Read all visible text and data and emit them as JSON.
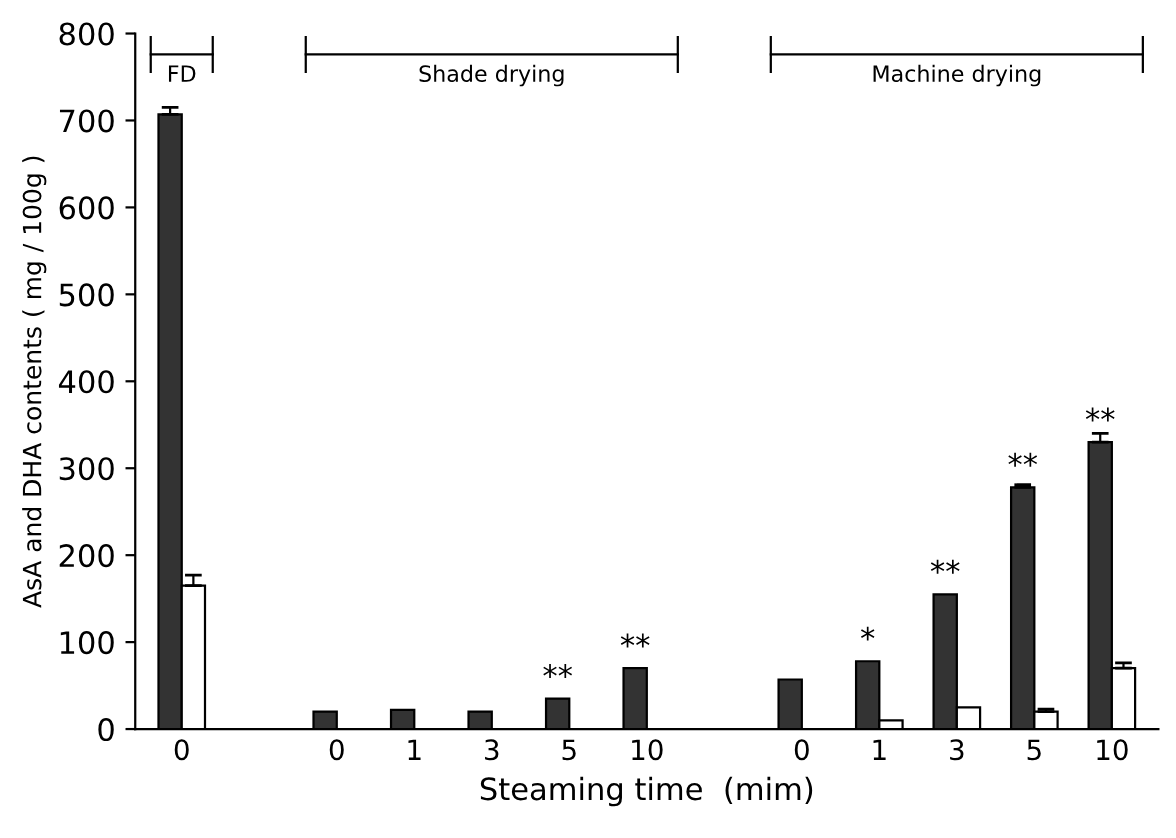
{
  "chart_data": {
    "type": "bar",
    "xlabel": "Steaming time  (mim)",
    "ylabel": "AsA and DHA contents ( mg / 100g )",
    "categories": [
      "0",
      null,
      "0",
      "1",
      "3",
      "5",
      "10",
      null,
      "0",
      "1",
      "3",
      "5",
      "10"
    ],
    "series": [
      {
        "color": "#333333",
        "values": [
          707,
          null,
          20,
          22,
          20,
          35,
          70,
          null,
          57,
          78,
          155,
          278,
          330
        ],
        "errors": [
          8,
          null,
          null,
          null,
          null,
          null,
          null,
          null,
          null,
          null,
          null,
          3,
          10
        ],
        "value_labels": [
          null,
          null,
          null,
          null,
          null,
          "**",
          "**",
          null,
          null,
          "*",
          "**",
          "**",
          "**"
        ]
      },
      {
        "color": "#ffffff",
        "values": [
          165,
          null,
          0,
          0,
          0,
          0,
          0,
          null,
          0,
          10,
          25,
          20,
          70
        ],
        "errors": [
          12,
          null,
          null,
          null,
          null,
          null,
          null,
          null,
          null,
          null,
          null,
          3,
          6
        ]
      }
    ],
    "annotations": [
      "FD",
      "Shade drying",
      "Machine drying"
    ],
    "ylim": [
      0,
      800
    ],
    "yticks": [
      0,
      100,
      200,
      300,
      400,
      500,
      600,
      700,
      800
    ],
    "grid": false,
    "legend": false
  }
}
